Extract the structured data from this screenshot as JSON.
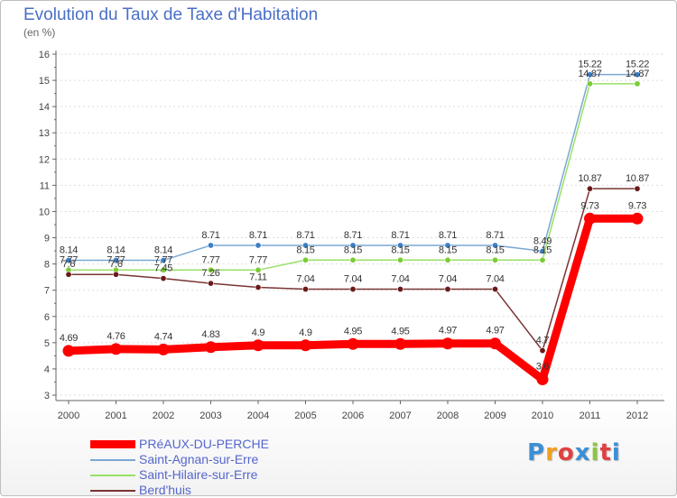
{
  "title": "Evolution du Taux de Taxe d'Habitation",
  "subtitle": "(en %)",
  "logo": "Proxiti",
  "colors": {
    "primary": "#ff0000",
    "blue": "#7ba7d2",
    "green": "#99e066",
    "brown": "#7a3434",
    "axis": "#666666",
    "grid": "#dddddd",
    "legend_text": "#5566cc",
    "logo_letters": [
      "#3b8fd6",
      "#f0a020",
      "#e04040",
      "#3b8fd6",
      "#8dc63f",
      "#e04040",
      "#3b8fd6"
    ]
  },
  "chart_data": {
    "type": "line",
    "title": "Evolution du Taux de Taxe d'Habitation",
    "ylabel": "(en %)",
    "xlabel": "",
    "ylim": [
      3,
      16
    ],
    "yticks": [
      3,
      4,
      5,
      6,
      7,
      8,
      9,
      10,
      11,
      12,
      13,
      14,
      15,
      16
    ],
    "categories": [
      "2000",
      "2001",
      "2002",
      "2003",
      "2004",
      "2005",
      "2006",
      "2007",
      "2008",
      "2009",
      "2010",
      "2011",
      "2012"
    ],
    "series": [
      {
        "name": "Saint-Agnan-sur-Erre",
        "color": "#7ba7d2",
        "marker": "#3b7fc4",
        "values": [
          8.14,
          8.14,
          8.14,
          8.71,
          8.71,
          8.71,
          8.71,
          8.71,
          8.71,
          8.71,
          8.49,
          15.22,
          15.22
        ],
        "labels": [
          "8.14",
          "8.14",
          "8.14",
          "8.71",
          "8.71",
          "8.71",
          "8.71",
          "8.71",
          "8.71",
          "8.71",
          "8.49",
          "15.22",
          "15.22"
        ]
      },
      {
        "name": "Saint-Hilaire-sur-Erre",
        "color": "#99e066",
        "marker": "#7acc33",
        "values": [
          7.77,
          7.77,
          7.77,
          7.77,
          7.77,
          8.15,
          8.15,
          8.15,
          8.15,
          8.15,
          8.15,
          14.87,
          14.87
        ],
        "labels": [
          "7.77",
          "7.77",
          "7.77",
          "7.77",
          "7.77",
          "8.15",
          "8.15",
          "8.15",
          "8.15",
          "8.15",
          "8.15",
          "14.87",
          "14.87"
        ]
      },
      {
        "name": "Berd'huis",
        "color": "#7a3434",
        "marker": "#6a1a1a",
        "values": [
          7.6,
          7.6,
          7.45,
          7.26,
          7.11,
          7.04,
          7.04,
          7.04,
          7.04,
          7.04,
          4.7,
          10.87,
          10.87
        ],
        "labels": [
          "7.6",
          "7.6",
          "7.45",
          "7.26",
          "7.11",
          "7.04",
          "7.04",
          "7.04",
          "7.04",
          "7.04",
          "4.7",
          "10.87",
          "10.87"
        ]
      },
      {
        "name": "PRéAUX-DU-PERCHE",
        "color": "#ff0000",
        "marker": "#ff0000",
        "values": [
          4.69,
          4.76,
          4.74,
          4.83,
          4.9,
          4.9,
          4.95,
          4.95,
          4.97,
          4.97,
          3.6,
          9.73,
          9.73
        ],
        "labels": [
          "4.69",
          "4.76",
          "4.74",
          "4.83",
          "4.9",
          "4.9",
          "4.95",
          "4.95",
          "4.97",
          "4.97",
          "3.6",
          "9.73",
          "9.73"
        ]
      }
    ],
    "legend": [
      {
        "name": "PRéAUX-DU-PERCHE",
        "color": "#ff0000"
      },
      {
        "name": "Saint-Agnan-sur-Erre",
        "color": "#7ba7d2"
      },
      {
        "name": "Saint-Hilaire-sur-Erre",
        "color": "#99e066"
      },
      {
        "name": "Berd'huis",
        "color": "#7a3434"
      }
    ],
    "legend_position": "bottom-left"
  }
}
